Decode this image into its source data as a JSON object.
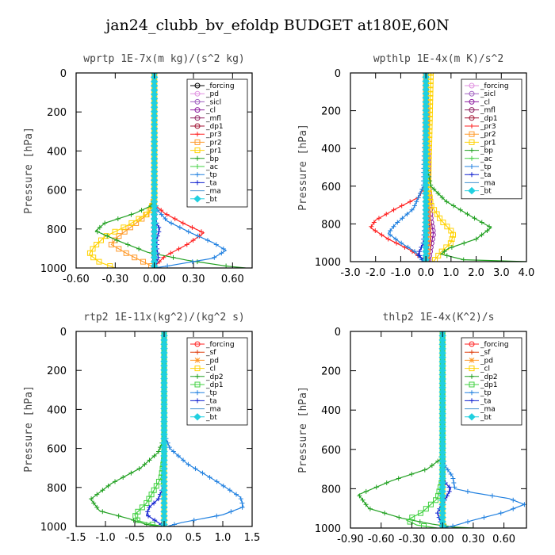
{
  "figure": {
    "title": "jan24_clubb_bv_efoldp  BUDGET at180E,60N"
  },
  "chart_data": [
    {
      "type": "line",
      "title": "wprtp  1E-7x(m kg)/(s^2 kg)",
      "ylabel": "Pressure [hPa]",
      "xlim": [
        -0.6,
        0.75
      ],
      "ylim": [
        1000,
        0
      ],
      "xticks": [
        -0.6,
        -0.3,
        0.0,
        0.3,
        0.6
      ],
      "xticklabels": [
        "-0.60",
        "-0.30",
        "0.00",
        "0.30",
        "0.60"
      ],
      "yticks": [
        0,
        200,
        400,
        600,
        800,
        1000
      ],
      "legend": "top-right",
      "series": [
        {
          "name": "_forcing",
          "color": "#000000",
          "marker": "circle",
          "x": [
            0,
            0
          ],
          "y": [
            0,
            1000
          ]
        },
        {
          "name": "_pd",
          "color": "#e090e0",
          "marker": "circle",
          "x": [
            0,
            0
          ],
          "y": [
            0,
            1000
          ]
        },
        {
          "name": "_sicl",
          "color": "#a060c0",
          "marker": "circle",
          "x": [
            0,
            0
          ],
          "y": [
            0,
            1000
          ]
        },
        {
          "name": "_cl",
          "color": "#8e1fa0",
          "marker": "circle",
          "x": [
            0,
            0
          ],
          "y": [
            0,
            1000
          ]
        },
        {
          "name": "_mfl",
          "color": "#8e2060",
          "marker": "circle",
          "x": [
            0,
            0
          ],
          "y": [
            0,
            1000
          ]
        },
        {
          "name": "_dp1",
          "color": "#a01030",
          "marker": "circle",
          "x": [
            0,
            0
          ],
          "y": [
            0,
            1000
          ]
        },
        {
          "name": "_pr3",
          "color": "#ff2020",
          "marker": "cross",
          "x": [
            0,
            0,
            0.01,
            0.08,
            0.22,
            0.38,
            0.25,
            0.08,
            0.02,
            0.0
          ],
          "y": [
            0,
            640,
            680,
            720,
            770,
            820,
            880,
            940,
            980,
            1000
          ]
        },
        {
          "name": "_pr2",
          "color": "#ff9a2a",
          "marker": "square",
          "x": [
            0,
            0,
            -0.02,
            -0.08,
            -0.18,
            -0.28,
            -0.33,
            -0.2,
            -0.05,
            0.0
          ],
          "y": [
            0,
            640,
            700,
            740,
            790,
            840,
            880,
            930,
            980,
            1000
          ]
        },
        {
          "name": "_pr1",
          "color": "#ffd200",
          "marker": "square",
          "x": [
            0,
            0,
            -0.05,
            -0.2,
            -0.38,
            -0.46,
            -0.5,
            -0.42,
            -0.3
          ],
          "y": [
            0,
            660,
            720,
            780,
            840,
            890,
            930,
            970,
            1000
          ]
        },
        {
          "name": "_bp",
          "color": "#20a020",
          "marker": "cross",
          "x": [
            0,
            0,
            -0.02,
            -0.15,
            -0.38,
            -0.45,
            -0.28,
            -0.05,
            0.25,
            0.55,
            0.7
          ],
          "y": [
            0,
            640,
            680,
            720,
            770,
            810,
            860,
            920,
            960,
            990,
            1000
          ]
        },
        {
          "name": "_ac",
          "color": "#40d040",
          "marker": "cross",
          "x": [
            0,
            0,
            0,
            0
          ],
          "y": [
            0,
            700,
            900,
            1000
          ]
        },
        {
          "name": "_tp",
          "color": "#2080e0",
          "marker": "cross",
          "x": [
            0,
            0,
            0.02,
            0.1,
            0.28,
            0.45,
            0.55,
            0.45,
            0.1,
            0.0
          ],
          "y": [
            0,
            660,
            700,
            760,
            820,
            870,
            910,
            950,
            990,
            1000
          ]
        },
        {
          "name": "_ta",
          "color": "#1020d0",
          "marker": "cross",
          "x": [
            0,
            0,
            0.01,
            0.04,
            0.02,
            0.02,
            0.03,
            0.0
          ],
          "y": [
            0,
            720,
            760,
            800,
            850,
            900,
            950,
            1000
          ]
        },
        {
          "name": "_ma",
          "color": "#4090d0",
          "marker": "none",
          "x": [
            0,
            0,
            0.01,
            0.0
          ],
          "y": [
            0,
            700,
            900,
            1000
          ]
        },
        {
          "name": "_bt",
          "color": "#20d0e0",
          "marker": "diamond",
          "x": [
            0,
            0
          ],
          "y": [
            0,
            1000
          ]
        }
      ]
    },
    {
      "type": "line",
      "title": "wpthlp  1E-4x(m K)/s^2",
      "ylabel": "Pressure [hPa]",
      "xlim": [
        -3.0,
        4.0
      ],
      "ylim": [
        1000,
        0
      ],
      "xticks": [
        -3,
        -2,
        -1,
        0,
        1,
        2,
        3,
        4
      ],
      "xticklabels": [
        "-3.0",
        "-2.0",
        "-1.0",
        "0.0",
        "1.0",
        "2.0",
        "3.0",
        "4.0"
      ],
      "yticks": [
        0,
        200,
        400,
        600,
        800,
        1000
      ],
      "legend": "top-right",
      "series": [
        {
          "name": "_forcing",
          "color": "#e090e0",
          "marker": "circle",
          "x": [
            0,
            0
          ],
          "y": [
            0,
            1000
          ]
        },
        {
          "name": "_sicl",
          "color": "#a060c0",
          "marker": "circle",
          "x": [
            0,
            0
          ],
          "y": [
            0,
            1000
          ]
        },
        {
          "name": "_cl",
          "color": "#8e1fa0",
          "marker": "circle",
          "x": [
            0,
            0.05,
            0.1,
            0.15,
            0.2,
            0.3,
            0.2,
            0.1
          ],
          "y": [
            0,
            300,
            600,
            700,
            780,
            850,
            920,
            1000
          ]
        },
        {
          "name": "_mfl",
          "color": "#8e2060",
          "marker": "circle",
          "x": [
            0,
            0,
            0.05,
            0.1,
            0.05
          ],
          "y": [
            0,
            600,
            800,
            900,
            1000
          ]
        },
        {
          "name": "_dp1",
          "color": "#a01030",
          "marker": "circle",
          "x": [
            0,
            0,
            0
          ],
          "y": [
            0,
            800,
            1000
          ]
        },
        {
          "name": "_pr3",
          "color": "#ff2020",
          "marker": "cross",
          "x": [
            0,
            -0.05,
            -0.3,
            -1.2,
            -2.0,
            -2.2,
            -1.5,
            -0.6,
            -0.1,
            0.0
          ],
          "y": [
            0,
            600,
            660,
            720,
            780,
            820,
            880,
            940,
            990,
            1000
          ]
        },
        {
          "name": "_pr2",
          "color": "#ff9a2a",
          "marker": "square",
          "x": [
            0,
            0,
            0.05,
            0.1,
            0.1,
            0.05,
            0.0
          ],
          "y": [
            0,
            600,
            700,
            800,
            900,
            960,
            1000
          ]
        },
        {
          "name": "_pr1",
          "color": "#ffd200",
          "marker": "square",
          "x": [
            0.2,
            0.15,
            0.1,
            0.2,
            0.6,
            1.1,
            1.0,
            0.6,
            0.3
          ],
          "y": [
            0,
            300,
            600,
            700,
            780,
            850,
            900,
            950,
            1000
          ]
        },
        {
          "name": "_bp",
          "color": "#20a020",
          "marker": "cross",
          "x": [
            0,
            0.05,
            0.2,
            0.8,
            1.8,
            2.6,
            2.0,
            0.9,
            0.6,
            1.5,
            4.0
          ],
          "y": [
            0,
            500,
            600,
            680,
            760,
            820,
            880,
            930,
            960,
            990,
            1000
          ]
        },
        {
          "name": "_ac",
          "color": "#40d040",
          "marker": "cross",
          "x": [
            0,
            0,
            0
          ],
          "y": [
            0,
            800,
            1000
          ]
        },
        {
          "name": "_tp",
          "color": "#2080e0",
          "marker": "cross",
          "x": [
            0,
            -0.1,
            -0.5,
            -1.2,
            -1.5,
            -1.0,
            -0.4,
            -0.1
          ],
          "y": [
            0,
            600,
            720,
            800,
            850,
            900,
            950,
            1000
          ]
        },
        {
          "name": "_ta",
          "color": "#1020d0",
          "marker": "cross",
          "x": [
            0,
            0,
            -0.05,
            -0.1,
            -0.3,
            -0.05
          ],
          "y": [
            0,
            700,
            800,
            900,
            960,
            1000
          ]
        },
        {
          "name": "_ma",
          "color": "#4090d0",
          "marker": "none",
          "x": [
            0,
            0,
            0
          ],
          "y": [
            0,
            800,
            1000
          ]
        },
        {
          "name": "_bt",
          "color": "#20d0e0",
          "marker": "diamond",
          "x": [
            0,
            0
          ],
          "y": [
            0,
            1000
          ]
        }
      ]
    },
    {
      "type": "line",
      "title": "rtp2  1E-11x(kg^2)/(kg^2 s)",
      "ylabel": "Pressure [hPa]",
      "xlim": [
        -1.5,
        1.5
      ],
      "ylim": [
        1000,
        0
      ],
      "xticks": [
        -1.5,
        -1.0,
        -0.5,
        0.0,
        0.5,
        1.0,
        1.5
      ],
      "xticklabels": [
        "-1.5",
        "-1.0",
        "-0.5",
        "0.0",
        "0.5",
        "1.0",
        "1.5"
      ],
      "yticks": [
        0,
        200,
        400,
        600,
        800,
        1000
      ],
      "legend": "top-right",
      "series": [
        {
          "name": "_forcing",
          "color": "#ff2020",
          "marker": "circle",
          "x": [
            0,
            0
          ],
          "y": [
            0,
            1000
          ]
        },
        {
          "name": "_sf",
          "color": "#e04010",
          "marker": "cross",
          "x": [
            0,
            0
          ],
          "y": [
            0,
            1000
          ]
        },
        {
          "name": "_pd",
          "color": "#ff9a2a",
          "marker": "star",
          "x": [
            0,
            0
          ],
          "y": [
            0,
            1000
          ]
        },
        {
          "name": "_cl",
          "color": "#ffd200",
          "marker": "square",
          "x": [
            0,
            0
          ],
          "y": [
            0,
            1000
          ]
        },
        {
          "name": "_dp2",
          "color": "#20a020",
          "marker": "cross",
          "x": [
            0,
            0,
            -0.02,
            -0.1,
            -0.4,
            -0.9,
            -1.25,
            -1.1,
            -0.6,
            -0.3,
            -0.05
          ],
          "y": [
            0,
            500,
            560,
            620,
            700,
            780,
            860,
            920,
            960,
            990,
            1000
          ]
        },
        {
          "name": "_dp1",
          "color": "#40d040",
          "marker": "square",
          "x": [
            0,
            0,
            -0.05,
            -0.3,
            -0.5,
            -0.45,
            -0.2,
            0.0
          ],
          "y": [
            0,
            650,
            750,
            880,
            940,
            970,
            990,
            1000
          ]
        },
        {
          "name": "_tp",
          "color": "#2080e0",
          "marker": "cross",
          "x": [
            0,
            0,
            0.02,
            0.1,
            0.4,
            0.9,
            1.3,
            1.35,
            1.0,
            0.3,
            0.05
          ],
          "y": [
            0,
            480,
            540,
            600,
            680,
            770,
            850,
            900,
            940,
            980,
            1000
          ]
        },
        {
          "name": "_ta",
          "color": "#1020d0",
          "marker": "cross",
          "x": [
            0,
            0,
            -0.02,
            -0.1,
            -0.25,
            -0.3,
            -0.1,
            0.0
          ],
          "y": [
            0,
            700,
            800,
            860,
            900,
            940,
            980,
            1000
          ]
        },
        {
          "name": "_ma",
          "color": "#4090d0",
          "marker": "none",
          "x": [
            0,
            0,
            0
          ],
          "y": [
            0,
            800,
            1000
          ]
        },
        {
          "name": "_bt",
          "color": "#20d0e0",
          "marker": "diamond",
          "x": [
            0,
            0
          ],
          "y": [
            0,
            1000
          ]
        }
      ]
    },
    {
      "type": "line",
      "title": "thlp2  1E-4x(K^2)/s",
      "ylabel": "Pressure [hPa]",
      "xlim": [
        -0.9,
        0.82
      ],
      "ylim": [
        1000,
        0
      ],
      "xticks": [
        -0.9,
        -0.6,
        -0.3,
        0.0,
        0.3,
        0.6
      ],
      "xticklabels": [
        "-0.90",
        "-0.60",
        "-0.30",
        "0.00",
        "0.30",
        "0.60"
      ],
      "yticks": [
        0,
        200,
        400,
        600,
        800,
        1000
      ],
      "legend": "top-right",
      "series": [
        {
          "name": "_forcing",
          "color": "#ff2020",
          "marker": "circle",
          "x": [
            0,
            0
          ],
          "y": [
            0,
            1000
          ]
        },
        {
          "name": "_sf",
          "color": "#e04010",
          "marker": "cross",
          "x": [
            0,
            0
          ],
          "y": [
            0,
            1000
          ]
        },
        {
          "name": "_pd",
          "color": "#ff9a2a",
          "marker": "star",
          "x": [
            0,
            0
          ],
          "y": [
            0,
            1000
          ]
        },
        {
          "name": "_cl",
          "color": "#ffd200",
          "marker": "square",
          "x": [
            0,
            0
          ],
          "y": [
            0,
            1000
          ]
        },
        {
          "name": "_dp2",
          "color": "#20a020",
          "marker": "cross",
          "x": [
            0,
            0,
            -0.02,
            -0.15,
            -0.5,
            -0.82,
            -0.72,
            -0.4,
            -0.1,
            0.1,
            0.3
          ],
          "y": [
            0,
            600,
            650,
            700,
            760,
            830,
            900,
            950,
            980,
            995,
            1000
          ]
        },
        {
          "name": "_dp1",
          "color": "#40d040",
          "marker": "square",
          "x": [
            0,
            0,
            -0.05,
            -0.2,
            -0.35,
            -0.25,
            -0.05
          ],
          "y": [
            0,
            750,
            850,
            920,
            960,
            985,
            1000
          ]
        },
        {
          "name": "_tp",
          "color": "#2080e0",
          "marker": "cross",
          "x": [
            0,
            0,
            0.02,
            0.1,
            0.12,
            0.3,
            0.65,
            0.8,
            0.6,
            0.3,
            0.1,
            0.0
          ],
          "y": [
            0,
            600,
            680,
            740,
            800,
            820,
            850,
            880,
            920,
            960,
            990,
            1000
          ]
        },
        {
          "name": "_ta",
          "color": "#1020d0",
          "marker": "cross",
          "x": [
            0,
            0,
            0.01,
            0.08,
            0.02,
            -0.05,
            -0.02,
            0.0
          ],
          "y": [
            0,
            700,
            760,
            800,
            860,
            920,
            970,
            1000
          ]
        },
        {
          "name": "_ma",
          "color": "#4090d0",
          "marker": "none",
          "x": [
            0,
            0,
            0
          ],
          "y": [
            0,
            800,
            1000
          ]
        },
        {
          "name": "_bt",
          "color": "#20d0e0",
          "marker": "diamond",
          "x": [
            0,
            0
          ],
          "y": [
            0,
            1000
          ]
        }
      ]
    }
  ]
}
